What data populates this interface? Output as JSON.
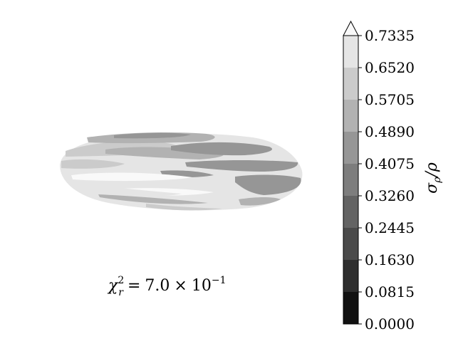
{
  "chart_data": {
    "type": "heatmap",
    "title": "",
    "annotation": {
      "lhs_symbol": "χ",
      "lhs_sup": "2",
      "lhs_sub": "r",
      "equals": "=",
      "mantissa": "7.0",
      "times": "×",
      "base": "10",
      "exponent": "−1"
    },
    "colorbar": {
      "label": "σρ/ρ",
      "label_main": "σ",
      "label_sub": "ρ",
      "label_tail": "/ρ",
      "levels": [
        0.0,
        0.0815,
        0.163,
        0.2445,
        0.326,
        0.4075,
        0.489,
        0.5705,
        0.652,
        0.7335
      ],
      "tick_labels": [
        "0.0000",
        "0.0815",
        "0.1630",
        "0.2445",
        "0.3260",
        "0.4075",
        "0.4890",
        "0.5705",
        "0.6520",
        "0.7335"
      ],
      "colors": [
        "#111111",
        "#2e2e2e",
        "#4a4a4a",
        "#636363",
        "#7d7d7d",
        "#969696",
        "#b2b2b2",
        "#cbcbcb",
        "#e5e5e5",
        "#f9f9f9"
      ],
      "extend": "max"
    }
  }
}
